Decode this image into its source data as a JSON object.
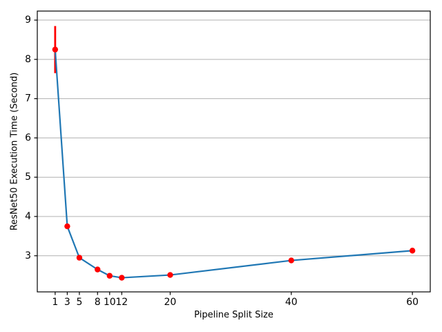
{
  "chart_data": {
    "type": "line",
    "title": "",
    "xlabel": "Pipeline Split Size",
    "ylabel": "ResNet50 Execution Time (Second)",
    "x": [
      1,
      3,
      5,
      8,
      10,
      12,
      20,
      40,
      60
    ],
    "series": [
      {
        "name": "ResNet50 execution time",
        "values": [
          8.25,
          3.75,
          2.95,
          2.65,
          2.49,
          2.44,
          2.51,
          2.88,
          3.13
        ],
        "yerr": [
          0.6,
          0,
          0,
          0,
          0,
          0,
          0,
          0,
          0
        ]
      }
    ],
    "xticks": [
      1,
      3,
      5,
      8,
      10,
      12,
      20,
      40,
      60
    ],
    "yticks": [
      3,
      4,
      5,
      6,
      7,
      8,
      9
    ],
    "xlim": [
      -1.95,
      62.95
    ],
    "ylim": [
      2.08,
      9.23
    ],
    "grid": "horizontal-only",
    "legend": "none",
    "colors": {
      "line": "#1f77b4",
      "marker": "#ff0000",
      "error_bar": "#ff0000",
      "gridline": "#b0b0b0",
      "spine": "#000000",
      "tick_label": "#000000",
      "background": "#ffffff"
    }
  }
}
